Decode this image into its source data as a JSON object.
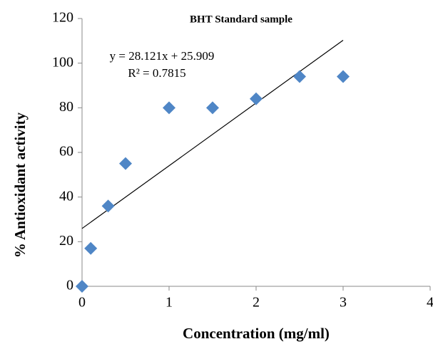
{
  "chart_data": {
    "type": "scatter",
    "title": "BHT Standard sample",
    "x_label": "Concentration (mg/ml)",
    "y_label": "% Antioxidant activity",
    "x": [
      0,
      0.1,
      0.3,
      0.5,
      1,
      1.5,
      2,
      2.5,
      3
    ],
    "values": [
      0,
      17,
      36,
      55,
      80,
      80,
      84,
      94,
      94
    ],
    "color": "#4f86c6",
    "xlim": [
      0,
      4
    ],
    "xticks": [
      0,
      1,
      2,
      3,
      4
    ],
    "ylim": [
      0,
      120
    ],
    "yticks": [
      0,
      20,
      40,
      60,
      80,
      100,
      120
    ],
    "grid": false,
    "trendline": {
      "slope": 28.121,
      "intercept": 25.909,
      "label": "y = 28.121x + 25.909",
      "r2_label": "R² = 0.7815"
    }
  }
}
